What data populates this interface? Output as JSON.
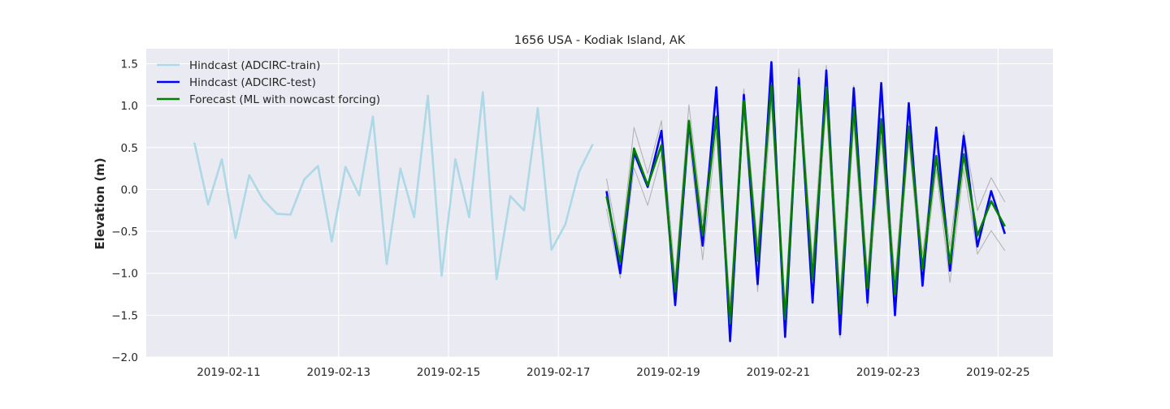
{
  "chart_data": {
    "type": "line",
    "title": "1656 USA - Kodiak Island, AK",
    "xlabel": "",
    "ylabel": "Elevation (m)",
    "x_tick_labels": [
      "2019-02-11",
      "2019-02-13",
      "2019-02-15",
      "2019-02-17",
      "2019-02-19",
      "2019-02-21",
      "2019-02-23",
      "2019-02-25"
    ],
    "x_ticks": [
      "2019-02-11",
      "2019-02-13",
      "2019-02-15",
      "2019-02-17",
      "2019-02-19",
      "2019-02-21",
      "2019-02-23",
      "2019-02-25"
    ],
    "y_tick_labels": [
      "−2.0",
      "−1.5",
      "−1.0",
      "−0.5",
      "0.0",
      "0.5",
      "1.0",
      "1.5"
    ],
    "y_ticks": [
      -2.0,
      -1.5,
      -1.0,
      -0.5,
      0.0,
      0.5,
      1.0,
      1.5
    ],
    "xlim": [
      "2019-02-09 12:00",
      "2019-02-26 00:00"
    ],
    "ylim": [
      -2.0,
      1.68
    ],
    "grid": true,
    "legend_position": "top-left",
    "colors": {
      "background": "#eaeaf2",
      "grid": "#ffffff",
      "train": "#add8e6",
      "test": "#0000ff",
      "forecast": "#008000",
      "band": "#aaaaaa"
    },
    "series": [
      {
        "name": "Hindcast (ADCIRC-train)",
        "color": "#add8e6",
        "x": [
          "2019-02-10 09:00",
          "2019-02-10 15:00",
          "2019-02-10 21:00",
          "2019-02-11 03:00",
          "2019-02-11 09:00",
          "2019-02-11 15:00",
          "2019-02-11 21:00",
          "2019-02-12 03:00",
          "2019-02-12 09:00",
          "2019-02-12 15:00",
          "2019-02-12 21:00",
          "2019-02-13 03:00",
          "2019-02-13 09:00",
          "2019-02-13 15:00",
          "2019-02-13 21:00",
          "2019-02-14 03:00",
          "2019-02-14 09:00",
          "2019-02-14 15:00",
          "2019-02-14 21:00",
          "2019-02-15 03:00",
          "2019-02-15 09:00",
          "2019-02-15 15:00",
          "2019-02-15 21:00",
          "2019-02-16 03:00",
          "2019-02-16 09:00",
          "2019-02-16 15:00",
          "2019-02-16 21:00",
          "2019-02-17 03:00",
          "2019-02-17 09:00",
          "2019-02-17 15:00",
          "2019-02-17 21:00"
        ],
        "values": [
          0.56,
          -0.18,
          0.36,
          -0.58,
          0.17,
          -0.12,
          -0.29,
          -0.3,
          0.12,
          0.28,
          -0.62,
          0.27,
          -0.07,
          0.87,
          -0.89,
          0.25,
          -0.33,
          1.12,
          -1.03,
          0.36,
          -0.33,
          1.16,
          -1.07,
          -0.08,
          -0.25,
          0.97,
          -0.72,
          -0.42,
          0.21,
          0.54,
          null
        ]
      },
      {
        "name": "Hindcast (ADCIRC-test)",
        "color": "#0000ff",
        "x": [
          "2019-02-17 21:00",
          "2019-02-18 03:00",
          "2019-02-18 09:00",
          "2019-02-18 15:00",
          "2019-02-18 21:00",
          "2019-02-19 03:00",
          "2019-02-19 09:00",
          "2019-02-19 15:00",
          "2019-02-19 21:00",
          "2019-02-20 03:00",
          "2019-02-20 09:00",
          "2019-02-20 15:00",
          "2019-02-20 21:00",
          "2019-02-21 03:00",
          "2019-02-21 09:00",
          "2019-02-21 15:00",
          "2019-02-21 21:00",
          "2019-02-22 03:00",
          "2019-02-22 09:00",
          "2019-02-22 15:00",
          "2019-02-22 21:00",
          "2019-02-23 03:00",
          "2019-02-23 09:00",
          "2019-02-23 15:00",
          "2019-02-23 21:00",
          "2019-02-24 03:00",
          "2019-02-24 09:00",
          "2019-02-24 15:00",
          "2019-02-24 21:00",
          "2019-02-25 03:00",
          "2019-02-25 09:00"
        ],
        "values": [
          -0.02,
          -1.0,
          0.44,
          0.03,
          0.7,
          -1.38,
          0.8,
          -0.67,
          1.22,
          -1.81,
          1.13,
          -1.13,
          1.52,
          -1.76,
          1.33,
          -1.35,
          1.42,
          -1.73,
          1.21,
          -1.35,
          1.27,
          -1.5,
          1.03,
          -1.15,
          0.74,
          -0.97,
          0.64,
          -0.68,
          -0.02,
          -0.53,
          null
        ]
      },
      {
        "name": "Forecast (ML with nowcast forcing)",
        "color": "#008000",
        "x": [
          "2019-02-17 21:00",
          "2019-02-18 03:00",
          "2019-02-18 09:00",
          "2019-02-18 15:00",
          "2019-02-18 21:00",
          "2019-02-19 03:00",
          "2019-02-19 09:00",
          "2019-02-19 15:00",
          "2019-02-19 21:00",
          "2019-02-20 03:00",
          "2019-02-20 09:00",
          "2019-02-20 15:00",
          "2019-02-20 21:00",
          "2019-02-21 03:00",
          "2019-02-21 09:00",
          "2019-02-21 15:00",
          "2019-02-21 21:00",
          "2019-02-22 03:00",
          "2019-02-22 09:00",
          "2019-02-22 15:00",
          "2019-02-22 21:00",
          "2019-02-23 03:00",
          "2019-02-23 09:00",
          "2019-02-23 15:00",
          "2019-02-23 21:00",
          "2019-02-24 03:00",
          "2019-02-24 09:00",
          "2019-02-24 15:00",
          "2019-02-24 21:00",
          "2019-02-25 03:00",
          "2019-02-25 09:00"
        ],
        "values": [
          -0.08,
          -0.87,
          0.49,
          0.05,
          0.53,
          -1.22,
          0.82,
          -0.55,
          0.87,
          -1.6,
          1.06,
          -0.85,
          1.24,
          -1.55,
          1.24,
          -1.07,
          1.22,
          -1.48,
          0.98,
          -1.18,
          0.84,
          -1.25,
          0.75,
          -0.95,
          0.4,
          -0.88,
          0.42,
          -0.55,
          -0.14,
          -0.44,
          null
        ]
      },
      {
        "name": "",
        "color": "#aaaaaa",
        "x": [
          "2019-02-17 21:00",
          "2019-02-18 03:00",
          "2019-02-18 09:00",
          "2019-02-18 15:00",
          "2019-02-18 21:00",
          "2019-02-19 03:00",
          "2019-02-19 09:00",
          "2019-02-19 15:00",
          "2019-02-19 21:00",
          "2019-02-20 03:00",
          "2019-02-20 09:00",
          "2019-02-20 15:00",
          "2019-02-20 21:00",
          "2019-02-21 03:00",
          "2019-02-21 09:00",
          "2019-02-21 15:00",
          "2019-02-21 21:00",
          "2019-02-22 03:00",
          "2019-02-22 09:00",
          "2019-02-22 15:00",
          "2019-02-22 21:00",
          "2019-02-23 03:00",
          "2019-02-23 09:00",
          "2019-02-23 15:00",
          "2019-02-23 21:00",
          "2019-02-24 03:00",
          "2019-02-24 09:00",
          "2019-02-24 15:00",
          "2019-02-24 21:00",
          "2019-02-25 03:00",
          "2019-02-25 09:00"
        ],
        "values": [
          0.13,
          -0.76,
          0.74,
          0.19,
          0.82,
          -1.05,
          1.01,
          -0.38,
          1.04,
          -1.38,
          1.2,
          -0.66,
          1.4,
          -1.4,
          1.44,
          -0.85,
          1.48,
          -1.25,
          1.24,
          -0.99,
          1.04,
          -1.05,
          0.92,
          -0.78,
          0.54,
          -0.68,
          0.69,
          -0.25,
          0.14,
          -0.15,
          null
        ]
      },
      {
        "name": "",
        "color": "#aaaaaa",
        "x": [
          "2019-02-17 21:00",
          "2019-02-18 03:00",
          "2019-02-18 09:00",
          "2019-02-18 15:00",
          "2019-02-18 21:00",
          "2019-02-19 03:00",
          "2019-02-19 09:00",
          "2019-02-19 15:00",
          "2019-02-19 21:00",
          "2019-02-20 03:00",
          "2019-02-20 09:00",
          "2019-02-20 15:00",
          "2019-02-20 21:00",
          "2019-02-21 03:00",
          "2019-02-21 09:00",
          "2019-02-21 15:00",
          "2019-02-21 21:00",
          "2019-02-22 03:00",
          "2019-02-22 09:00",
          "2019-02-22 15:00",
          "2019-02-22 21:00",
          "2019-02-23 03:00",
          "2019-02-23 09:00",
          "2019-02-23 15:00",
          "2019-02-23 21:00",
          "2019-02-24 03:00",
          "2019-02-24 09:00",
          "2019-02-24 15:00",
          "2019-02-24 21:00",
          "2019-02-25 03:00",
          "2019-02-25 09:00"
        ],
        "values": [
          -0.23,
          -1.06,
          0.26,
          -0.19,
          0.42,
          -1.38,
          0.63,
          -0.84,
          0.68,
          -1.76,
          0.91,
          -1.22,
          1.04,
          -1.7,
          1.07,
          -1.28,
          1.02,
          -1.77,
          0.78,
          -1.4,
          0.62,
          -1.45,
          0.58,
          -1.12,
          0.24,
          -1.11,
          0.25,
          -0.77,
          -0.49,
          -0.73,
          null
        ]
      }
    ]
  }
}
